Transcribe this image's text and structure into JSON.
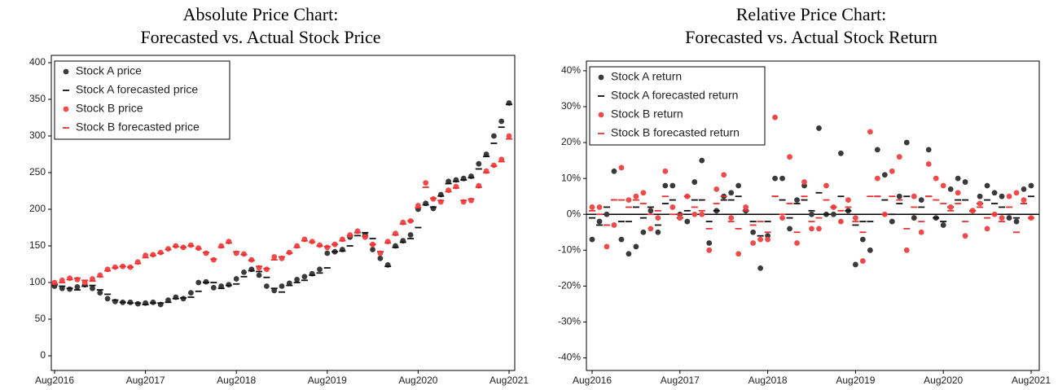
{
  "chart_data": [
    {
      "type": "scatter",
      "title": "Absolute Price Chart:",
      "subtitle": "Forecasted vs. Actual Stock Price",
      "categories": [
        "Aug2016",
        null,
        null,
        null,
        null,
        null,
        null,
        null,
        null,
        null,
        null,
        null,
        "Aug2017",
        null,
        null,
        null,
        null,
        null,
        null,
        null,
        null,
        null,
        null,
        null,
        "Aug2018",
        null,
        null,
        null,
        null,
        null,
        null,
        null,
        null,
        null,
        null,
        null,
        "Aug2019",
        null,
        null,
        null,
        null,
        null,
        null,
        null,
        null,
        null,
        null,
        null,
        "Aug2020",
        null,
        null,
        null,
        null,
        null,
        null,
        null,
        null,
        null,
        null,
        null,
        "Aug2021"
      ],
      "ylim": [
        -20,
        410
      ],
      "yticks": [
        0,
        50,
        100,
        150,
        200,
        250,
        300,
        350,
        400
      ],
      "grid": false,
      "legend": "upper left",
      "series": [
        {
          "name": "Stock A price",
          "color": "#3a3a3a",
          "marker": "dot",
          "values": [
            95,
            92,
            91,
            94,
            97,
            92,
            86,
            78,
            74,
            73,
            73,
            71,
            72,
            73,
            70,
            76,
            80,
            78,
            86,
            100,
            101,
            93,
            95,
            97,
            105,
            114,
            118,
            110,
            95,
            89,
            95,
            99,
            104,
            108,
            112,
            118,
            140,
            142,
            145,
            162,
            170,
            165,
            145,
            133,
            124,
            150,
            157,
            165,
            200,
            208,
            201,
            220,
            238,
            240,
            242,
            245,
            262,
            275,
            300,
            320,
            345
          ]
        },
        {
          "name": "Stock A forecasted price",
          "color": "#111111",
          "marker": "dash",
          "values": [
            97,
            95,
            92,
            90,
            95,
            96,
            90,
            84,
            76,
            73,
            72,
            72,
            70,
            72,
            72,
            73,
            78,
            79,
            80,
            88,
            100,
            100,
            92,
            96,
            98,
            108,
            116,
            115,
            107,
            92,
            87,
            96,
            100,
            103,
            110,
            113,
            120,
            142,
            143,
            150,
            164,
            168,
            160,
            142,
            122,
            148,
            155,
            160,
            175,
            206,
            203,
            218,
            235,
            238,
            240,
            243,
            255,
            272,
            290,
            312,
            343
          ]
        },
        {
          "name": "Stock B price",
          "color": "#f24a4a",
          "marker": "dot",
          "values": [
            100,
            103,
            106,
            104,
            100,
            105,
            110,
            118,
            121,
            122,
            121,
            128,
            137,
            138,
            141,
            146,
            150,
            148,
            151,
            147,
            140,
            131,
            150,
            156,
            140,
            139,
            131,
            120,
            118,
            135,
            133,
            141,
            150,
            159,
            156,
            151,
            148,
            152,
            159,
            165,
            170,
            162,
            152,
            140,
            156,
            167,
            182,
            184,
            205,
            236,
            214,
            210,
            226,
            231,
            210,
            212,
            232,
            252,
            260,
            268,
            300
          ]
        },
        {
          "name": "Stock B forecasted price",
          "color": "#f03030",
          "marker": "dash",
          "values": [
            98,
            100,
            104,
            106,
            103,
            102,
            108,
            116,
            120,
            122,
            121,
            126,
            134,
            137,
            140,
            145,
            149,
            148,
            150,
            146,
            141,
            132,
            148,
            154,
            142,
            138,
            130,
            122,
            119,
            131,
            135,
            140,
            148,
            157,
            155,
            150,
            149,
            152,
            157,
            164,
            168,
            163,
            152,
            142,
            154,
            165,
            180,
            184,
            202,
            230,
            215,
            212,
            224,
            229,
            212,
            214,
            230,
            250,
            259,
            265,
            296
          ]
        }
      ]
    },
    {
      "type": "scatter",
      "title": "Relative Price Chart:",
      "subtitle": "Forecasted vs. Actual Stock Return",
      "categories": [
        "Aug2016",
        null,
        null,
        null,
        null,
        null,
        null,
        null,
        null,
        null,
        null,
        null,
        "Aug2017",
        null,
        null,
        null,
        null,
        null,
        null,
        null,
        null,
        null,
        null,
        null,
        "Aug2018",
        null,
        null,
        null,
        null,
        null,
        null,
        null,
        null,
        null,
        null,
        null,
        "Aug2019",
        null,
        null,
        null,
        null,
        null,
        null,
        null,
        null,
        null,
        null,
        null,
        "Aug2020",
        null,
        null,
        null,
        null,
        null,
        null,
        null,
        null,
        null,
        null,
        null,
        "Aug2021"
      ],
      "ylim": [
        -43.5,
        42.7
      ],
      "yticks": [
        {
          "value": -40,
          "label": "-40%"
        },
        {
          "value": -30,
          "label": "-30%"
        },
        {
          "value": -20,
          "label": "-20%"
        },
        {
          "value": -10,
          "label": "-10%"
        },
        {
          "value": 0,
          "label": "0%"
        },
        {
          "value": 10,
          "label": "10%"
        },
        {
          "value": 20,
          "label": "20%"
        },
        {
          "value": 30,
          "label": "30%"
        },
        {
          "value": 40,
          "label": "40%"
        }
      ],
      "grid": false,
      "legend": "upper left",
      "reference_line": 0,
      "series": [
        {
          "name": "Stock A return",
          "color": "#3a3a3a",
          "marker": "dot",
          "values": [
            -7,
            -2,
            0,
            12,
            -7,
            -11,
            -9,
            -5,
            1,
            -5,
            8,
            8,
            0,
            -2,
            9,
            15,
            -8,
            1,
            5,
            6,
            8,
            1,
            -5,
            -15,
            -6,
            10,
            10,
            -4,
            4,
            8,
            0,
            24,
            0,
            0,
            17,
            1,
            -14,
            -7,
            -10,
            18,
            11,
            -2,
            5,
            20,
            -1,
            4,
            18,
            -1,
            -3,
            7,
            10,
            9,
            1,
            5,
            8,
            6,
            5,
            -1,
            -2,
            7,
            8
          ]
        },
        {
          "name": "Stock A forecasted return",
          "color": "#111111",
          "marker": "dash",
          "values": [
            -1,
            -3,
            2,
            4,
            -2,
            -2,
            2,
            -1,
            2,
            -3,
            3,
            4,
            -1,
            1,
            4,
            4,
            -2,
            1,
            4,
            4,
            5,
            1,
            -2,
            -6,
            -2,
            5,
            4,
            -1,
            3,
            4,
            1,
            6,
            0,
            2,
            5,
            1,
            -3,
            -2,
            -2,
            5,
            4,
            0,
            3,
            5,
            0,
            2,
            5,
            -1,
            -2,
            2,
            4,
            4,
            1,
            3,
            4,
            3,
            2,
            0,
            -1,
            3,
            5
          ]
        },
        {
          "name": "Stock B return",
          "color": "#f24a4a",
          "marker": "dot",
          "values": [
            2,
            2,
            -9,
            -3,
            13,
            4,
            5,
            6,
            -4,
            -1,
            12,
            2,
            -1,
            5,
            0,
            0,
            -10,
            7,
            11,
            -1,
            -11,
            2,
            -8,
            -7,
            -7,
            27,
            -1,
            16,
            -8,
            9,
            -4,
            -4,
            8,
            2,
            -2,
            4,
            -1,
            -13,
            23,
            10,
            0,
            12,
            16,
            -10,
            5,
            -5,
            14,
            10,
            8,
            2,
            6,
            -6,
            1,
            3,
            -4,
            0,
            -1,
            5,
            6,
            4,
            -1
          ]
        },
        {
          "name": "Stock B forecasted return",
          "color": "#f03030",
          "marker": "dash",
          "values": [
            1,
            0,
            -3,
            4,
            4,
            2,
            4,
            3,
            0,
            1,
            5,
            0,
            0,
            5,
            2,
            1,
            -4,
            3,
            5,
            -2,
            -4,
            1,
            -3,
            -2,
            -5,
            5,
            0,
            3,
            -5,
            5,
            -2,
            -1,
            4,
            2,
            1,
            2,
            -2,
            -5,
            5,
            5,
            0,
            5,
            4,
            -4,
            2,
            -2,
            5,
            4,
            3,
            1,
            3,
            -2,
            1,
            2,
            -1,
            0,
            -2,
            2,
            -5,
            3,
            -1
          ]
        }
      ]
    }
  ]
}
